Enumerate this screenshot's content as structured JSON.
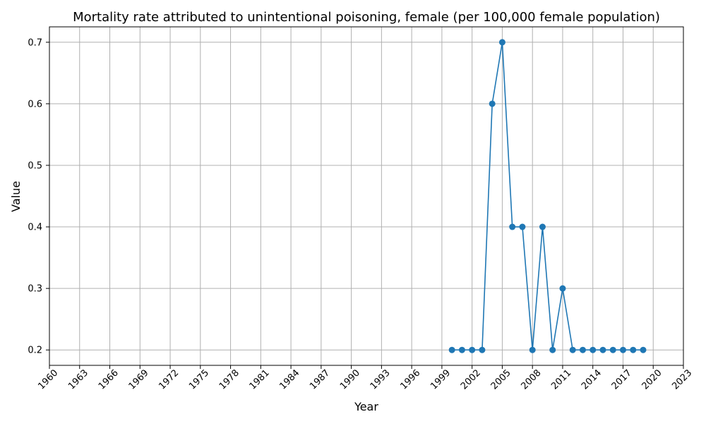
{
  "chart_data": {
    "type": "line",
    "title": "Mortality rate attributed to unintentional poisoning, female (per 100,000 female population)",
    "xlabel": "Year",
    "ylabel": "Value",
    "xlim": [
      1960,
      2023
    ],
    "ylim": [
      0.175,
      0.725
    ],
    "x_ticks": [
      1960,
      1963,
      1966,
      1969,
      1972,
      1975,
      1978,
      1981,
      1984,
      1987,
      1990,
      1993,
      1996,
      1999,
      2002,
      2005,
      2008,
      2011,
      2014,
      2017,
      2020,
      2023
    ],
    "y_ticks": [
      0.2,
      0.3,
      0.4,
      0.5,
      0.6,
      0.7
    ],
    "grid": true,
    "series": [
      {
        "color": "#1f77b4",
        "x": [
          2000,
          2001,
          2002,
          2003,
          2004,
          2005,
          2006,
          2007,
          2008,
          2009,
          2010,
          2011,
          2012,
          2013,
          2014,
          2015,
          2016,
          2017,
          2018,
          2019
        ],
        "values": [
          0.2,
          0.2,
          0.2,
          0.2,
          0.6,
          0.7,
          0.4,
          0.4,
          0.2,
          0.4,
          0.2,
          0.3,
          0.2,
          0.2,
          0.2,
          0.2,
          0.2,
          0.2,
          0.2,
          0.2
        ]
      }
    ]
  }
}
